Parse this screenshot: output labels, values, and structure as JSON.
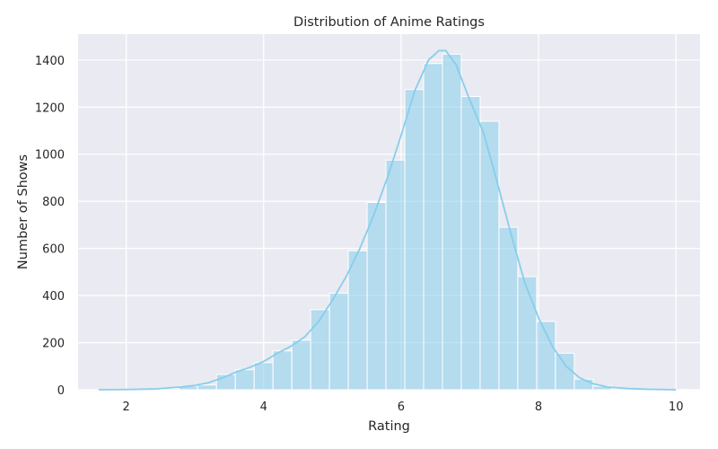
{
  "chart_data": {
    "type": "bar",
    "title": "Distribution of Anime Ratings",
    "xlabel": "Rating",
    "ylabel": "Number of Shows",
    "xlim": [
      1.3,
      10.35
    ],
    "ylim": [
      0,
      1510
    ],
    "xticks": [
      2,
      4,
      6,
      8,
      10
    ],
    "yticks": [
      0,
      200,
      400,
      600,
      800,
      1000,
      1200,
      1400
    ],
    "grid": true,
    "bar_color": "#87ceeb",
    "bins": [
      {
        "x0": 1.67,
        "x1": 1.944,
        "count": 2
      },
      {
        "x0": 1.944,
        "x1": 2.218,
        "count": 1
      },
      {
        "x0": 2.218,
        "x1": 2.492,
        "count": 3
      },
      {
        "x0": 2.492,
        "x1": 2.766,
        "count": 5
      },
      {
        "x0": 2.766,
        "x1": 3.04,
        "count": 15
      },
      {
        "x0": 3.04,
        "x1": 3.314,
        "count": 20
      },
      {
        "x0": 3.314,
        "x1": 3.588,
        "count": 65
      },
      {
        "x0": 3.588,
        "x1": 3.862,
        "count": 85
      },
      {
        "x0": 3.862,
        "x1": 4.136,
        "count": 115
      },
      {
        "x0": 4.136,
        "x1": 4.41,
        "count": 165
      },
      {
        "x0": 4.41,
        "x1": 4.684,
        "count": 210
      },
      {
        "x0": 4.684,
        "x1": 4.958,
        "count": 340
      },
      {
        "x0": 4.958,
        "x1": 5.232,
        "count": 410
      },
      {
        "x0": 5.232,
        "x1": 5.506,
        "count": 590
      },
      {
        "x0": 5.506,
        "x1": 5.78,
        "count": 795
      },
      {
        "x0": 5.78,
        "x1": 6.054,
        "count": 975
      },
      {
        "x0": 6.054,
        "x1": 6.328,
        "count": 1275
      },
      {
        "x0": 6.328,
        "x1": 6.602,
        "count": 1385
      },
      {
        "x0": 6.602,
        "x1": 6.876,
        "count": 1425
      },
      {
        "x0": 6.876,
        "x1": 7.15,
        "count": 1245
      },
      {
        "x0": 7.15,
        "x1": 7.424,
        "count": 1140
      },
      {
        "x0": 7.424,
        "x1": 7.698,
        "count": 690
      },
      {
        "x0": 7.698,
        "x1": 7.972,
        "count": 480
      },
      {
        "x0": 7.972,
        "x1": 8.246,
        "count": 290
      },
      {
        "x0": 8.246,
        "x1": 8.52,
        "count": 155
      },
      {
        "x0": 8.52,
        "x1": 8.794,
        "count": 45
      },
      {
        "x0": 8.794,
        "x1": 9.068,
        "count": 15
      },
      {
        "x0": 9.068,
        "x1": 9.342,
        "count": 5
      },
      {
        "x0": 9.342,
        "x1": 9.616,
        "count": 2
      },
      {
        "x0": 9.616,
        "x1": 9.89,
        "count": 1
      },
      {
        "x0": 9.89,
        "x1": 10.164,
        "count": 1
      }
    ],
    "kde": {
      "x": [
        1.6,
        2.0,
        2.4,
        2.8,
        3.0,
        3.2,
        3.4,
        3.6,
        3.8,
        4.0,
        4.2,
        4.4,
        4.6,
        4.8,
        5.0,
        5.2,
        5.4,
        5.6,
        5.8,
        6.0,
        6.2,
        6.4,
        6.55,
        6.65,
        6.8,
        7.0,
        7.2,
        7.4,
        7.6,
        7.8,
        8.0,
        8.2,
        8.4,
        8.6,
        8.8,
        9.0,
        9.3,
        9.6,
        10.0
      ],
      "y": [
        0,
        1,
        3,
        12,
        18,
        30,
        50,
        75,
        95,
        120,
        155,
        185,
        225,
        290,
        380,
        480,
        600,
        740,
        900,
        1080,
        1270,
        1400,
        1440,
        1440,
        1380,
        1230,
        1090,
        880,
        660,
        455,
        305,
        185,
        100,
        50,
        25,
        12,
        5,
        2,
        0
      ]
    }
  }
}
